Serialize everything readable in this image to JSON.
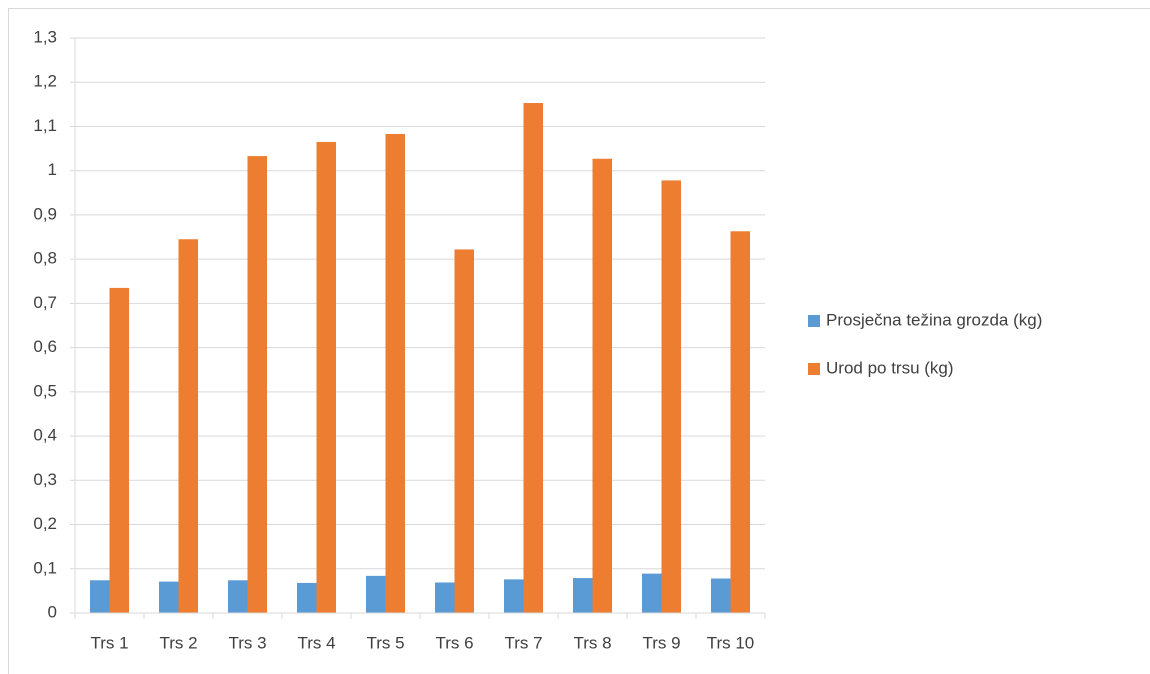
{
  "chart_data": {
    "type": "bar",
    "categories": [
      "Trs 1",
      "Trs 2",
      "Trs 3",
      "Trs 4",
      "Trs 5",
      "Trs 6",
      "Trs 7",
      "Trs 8",
      "Trs 9",
      "Trs 10"
    ],
    "series": [
      {
        "name": "Prosječna težina grozda (kg)",
        "color": "#5b9bd5",
        "values": [
          0.074,
          0.071,
          0.074,
          0.068,
          0.084,
          0.069,
          0.076,
          0.079,
          0.089,
          0.078
        ]
      },
      {
        "name": "Urod po trsu (kg)",
        "color": "#ed7d31",
        "values": [
          0.735,
          0.845,
          1.033,
          1.065,
          1.083,
          0.822,
          1.153,
          1.027,
          0.978,
          0.863
        ]
      }
    ],
    "ylim": [
      0,
      1.3
    ],
    "yticks": [
      0,
      {
        "value": 0.1,
        "label": "0,1"
      },
      {
        "value": 0.2,
        "label": "0,2"
      },
      {
        "value": 0.3,
        "label": "0,3"
      },
      {
        "value": 0.4,
        "label": "0,4"
      },
      {
        "value": 0.5,
        "label": "0,5"
      },
      {
        "value": 0.6,
        "label": "0,6"
      },
      {
        "value": 0.7,
        "label": "0,7"
      },
      {
        "value": 0.8,
        "label": "0,8"
      },
      {
        "value": 0.9,
        "label": "0,9"
      },
      1,
      {
        "value": 1.1,
        "label": "1,1"
      },
      {
        "value": 1.2,
        "label": "1,2"
      },
      {
        "value": 1.3,
        "label": "1,3"
      }
    ],
    "grid": true,
    "legend": "right"
  }
}
